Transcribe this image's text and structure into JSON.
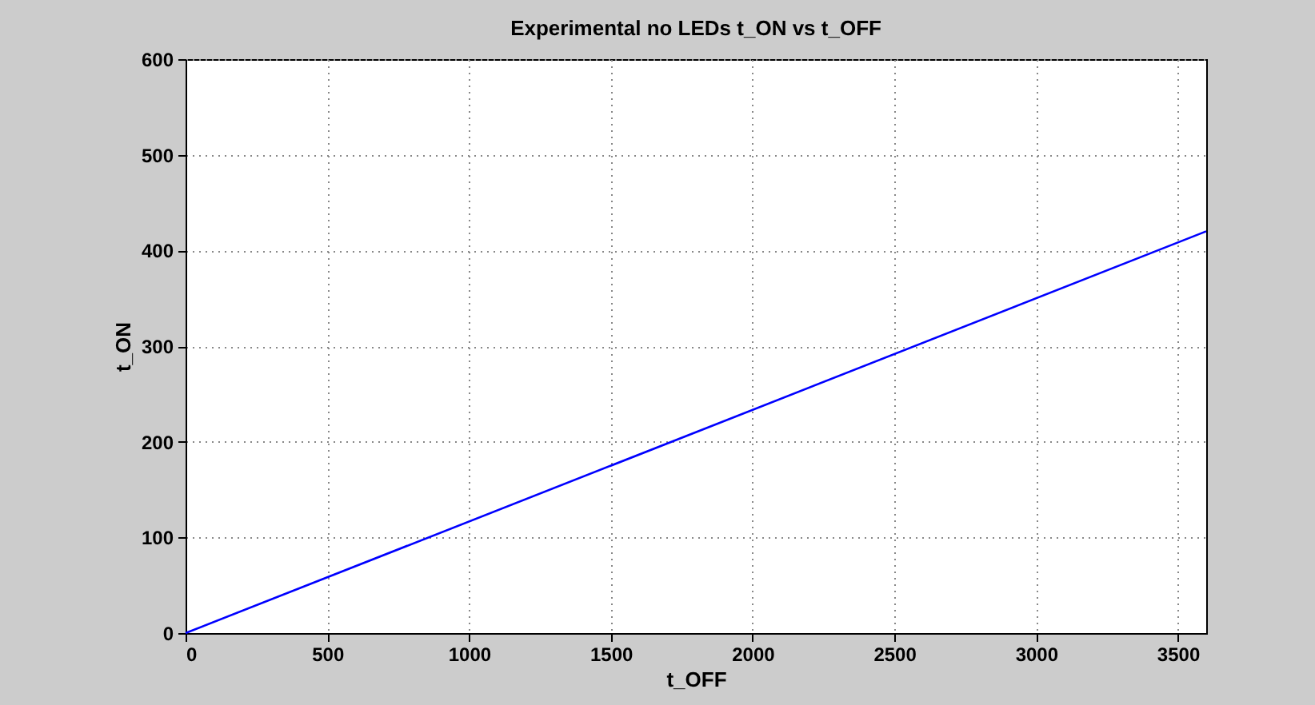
{
  "chart_data": {
    "type": "line",
    "title": "Experimental no LEDs t_ON vs t_OFF",
    "xlabel": "t_OFF",
    "ylabel": "t_ON",
    "x": [
      0,
      3600
    ],
    "series": [
      {
        "color": "#0000ff",
        "values": [
          0,
          420
        ]
      }
    ],
    "xlim": [
      0,
      3600
    ],
    "xticks": [
      0,
      500,
      1000,
      1500,
      2000,
      2500,
      3000,
      3500
    ],
    "ylim": [
      0,
      600
    ],
    "yticks": [
      0,
      100,
      200,
      300,
      400,
      500,
      600
    ],
    "grid": true,
    "marker": "none",
    "line_style": "solid"
  }
}
